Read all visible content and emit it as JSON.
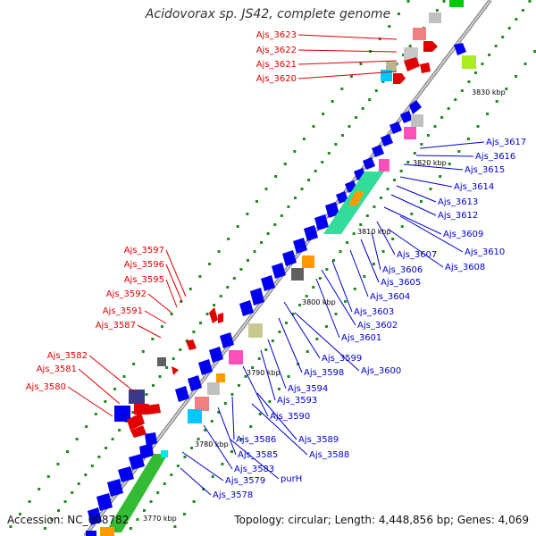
{
  "title": "Acidovorax sp. JS42, complete genome",
  "accession": "Accession: NC_008782",
  "summary": "Topology: circular; Length: 4,448,856 bp; Genes: 4,069",
  "colors": {
    "red_label": "#dd0000",
    "blue_label": "#0000cc",
    "backbone": "#8a8a8a",
    "dots": "#1f8a1f"
  },
  "ticks": [
    "3830 kbp",
    "3820 kbp",
    "3810 kbp",
    "3800 kbp",
    "3790 kbp",
    "3780 kbp",
    "3770 kbp"
  ],
  "left_labels": [
    "Ajs_3623",
    "Ajs_3622",
    "Ajs_3621",
    "Ajs_3620",
    "Ajs_3597",
    "Ajs_3596",
    "Ajs_3595",
    "Ajs_3592",
    "Ajs_3591",
    "Ajs_3587",
    "Ajs_3582",
    "Ajs_3581",
    "Ajs_3580"
  ],
  "right_labels": [
    "Ajs_3617",
    "Ajs_3616",
    "Ajs_3615",
    "Ajs_3614",
    "Ajs_3613",
    "Ajs_3612",
    "Ajs_3609",
    "Ajs_3610",
    "Ajs_3607",
    "Ajs_3608",
    "Ajs_3606",
    "Ajs_3605",
    "Ajs_3604",
    "Ajs_3603",
    "Ajs_3602",
    "Ajs_3601",
    "Ajs_3599",
    "Ajs_3600",
    "Ajs_3598",
    "Ajs_3594",
    "Ajs_3593",
    "Ajs_3590",
    "Ajs_3586",
    "Ajs_3589",
    "Ajs_3585",
    "Ajs_3588",
    "Ajs_3583",
    "purH",
    "Ajs_3579",
    "Ajs_3578"
  ]
}
